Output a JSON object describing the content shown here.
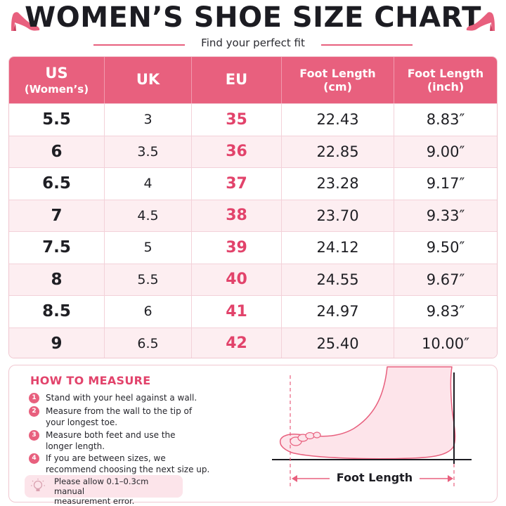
{
  "header": {
    "title": "WOMEN’S SHOE SIZE CHART",
    "subtitle": "Find your perfect fit",
    "icons": [
      "high-heel-icon",
      "high-heel-icon"
    ],
    "accent_color": "#e8607e"
  },
  "table": {
    "headers": [
      {
        "line1": "US",
        "line2": "(Women’s)"
      },
      {
        "line1": "UK",
        "line2": ""
      },
      {
        "line1": "EU",
        "line2": ""
      },
      {
        "line1": "Foot Length",
        "line2": "(cm)"
      },
      {
        "line1": "Foot Length",
        "line2": "(inch)"
      }
    ],
    "rows": [
      {
        "us": "5.5",
        "uk": "3",
        "eu": "35",
        "cm": "22.43",
        "inch": "8.83″"
      },
      {
        "us": "6",
        "uk": "3.5",
        "eu": "36",
        "cm": "22.85",
        "inch": "9.00″"
      },
      {
        "us": "6.5",
        "uk": "4",
        "eu": "37",
        "cm": "23.28",
        "inch": "9.17″"
      },
      {
        "us": "7",
        "uk": "4.5",
        "eu": "38",
        "cm": "23.70",
        "inch": "9.33″"
      },
      {
        "us": "7.5",
        "uk": "5",
        "eu": "39",
        "cm": "24.12",
        "inch": "9.50″"
      },
      {
        "us": "8",
        "uk": "5.5",
        "eu": "40",
        "cm": "24.55",
        "inch": "9.67″"
      },
      {
        "us": "8.5",
        "uk": "6",
        "eu": "41",
        "cm": "24.97",
        "inch": "9.83″"
      },
      {
        "us": "9",
        "uk": "6.5",
        "eu": "42",
        "cm": "25.40",
        "inch": "10.00″"
      }
    ],
    "header_color": "#e8607e",
    "eu_color": "#e2436b",
    "alt_row_color": "#fdeef1"
  },
  "measure": {
    "title": "HOW TO MEASURE",
    "steps": [
      {
        "num": "1",
        "line1": "Stand with your heel against a wall.",
        "line2": ""
      },
      {
        "num": "2",
        "line1": "Measure from the wall to the tip of",
        "line2": "your longest toe."
      },
      {
        "num": "3",
        "line1": "Measure both feet and use the",
        "line2": "longer length."
      },
      {
        "num": "4",
        "line1": "If you are between sizes, we",
        "line2": "recommend choosing the next size up."
      }
    ],
    "note_line1": "Please allow 0.1–0.3cm manual",
    "note_line2": "measurement error.",
    "note_icon": "lightbulb-icon",
    "diagram_icon": "foot-outline-icon",
    "diagram_label": "Foot Length"
  }
}
